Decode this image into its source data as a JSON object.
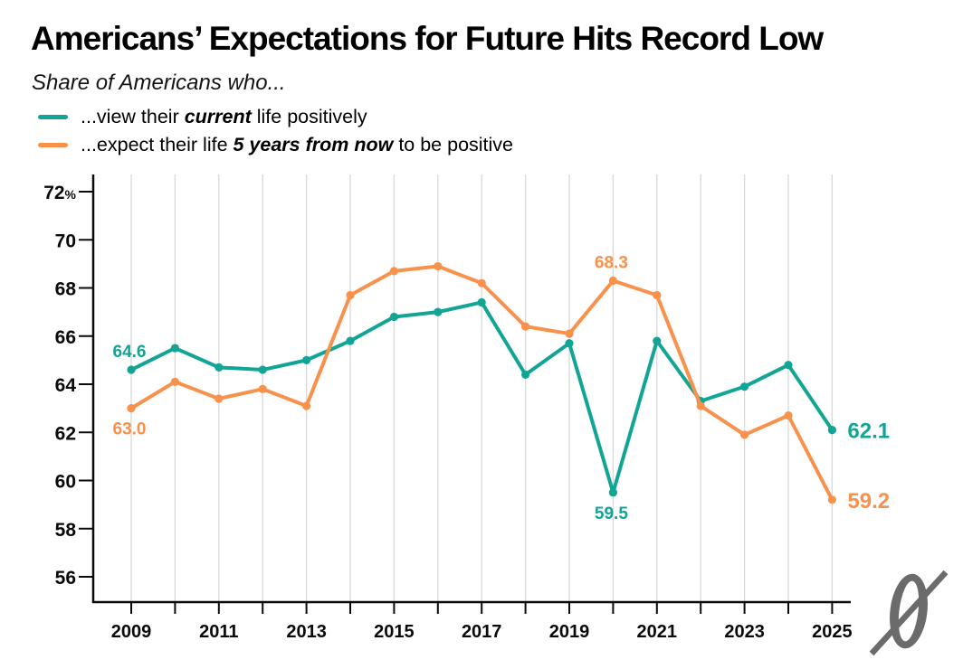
{
  "header": {
    "title": "Americans’ Expectations for Future Hits Record Low",
    "subtitle": "Share of Americans who..."
  },
  "legend": {
    "items": [
      {
        "id": "current",
        "pre": "...view their ",
        "em": "current",
        "post": " life positively",
        "color": "#12a495"
      },
      {
        "id": "future",
        "pre": "...expect their life ",
        "em": "5 years from now",
        "post": " to be positive",
        "color": "#f8914c"
      }
    ]
  },
  "chart_data": {
    "type": "line",
    "x": [
      2009,
      2010,
      2011,
      2012,
      2013,
      2014,
      2015,
      2016,
      2017,
      2018,
      2019,
      2020,
      2021,
      2022,
      2023,
      2024,
      2025
    ],
    "series": [
      {
        "id": "current",
        "name": "...view their current life positively",
        "color": "#12a495",
        "values": [
          64.6,
          65.5,
          64.7,
          64.6,
          65.0,
          65.8,
          66.8,
          67.0,
          67.4,
          64.4,
          65.7,
          59.5,
          65.8,
          63.3,
          63.9,
          64.8,
          62.1
        ]
      },
      {
        "id": "future",
        "name": "...expect their life 5 years from now to be positive",
        "color": "#f8914c",
        "values": [
          63.0,
          64.1,
          63.4,
          63.8,
          63.1,
          67.7,
          68.7,
          68.9,
          68.2,
          66.4,
          66.1,
          68.3,
          67.7,
          63.1,
          61.9,
          62.7,
          59.2
        ]
      }
    ],
    "title": "Americans’ Expectations for Future Hits Record Low",
    "xlabel": "",
    "ylabel": "%",
    "y_unit": "%",
    "ylim": [
      55,
      72.5
    ],
    "yticks": [
      72,
      70,
      68,
      66,
      64,
      62,
      60,
      58,
      56
    ],
    "xtick_labels": [
      2009,
      2011,
      2013,
      2015,
      2017,
      2019,
      2021,
      2023,
      2025
    ],
    "grid": "vertical-only",
    "legend_position": "top-left",
    "annotations": [
      {
        "series": 0,
        "x": 2009,
        "text": "64.6",
        "placement": "above"
      },
      {
        "series": 1,
        "x": 2009,
        "text": "63.0",
        "placement": "below"
      },
      {
        "series": 1,
        "x": 2020,
        "text": "68.3",
        "placement": "above"
      },
      {
        "series": 0,
        "x": 2020,
        "text": "59.5",
        "placement": "below"
      },
      {
        "series": 0,
        "x": 2025,
        "text": "62.1",
        "placement": "right"
      },
      {
        "series": 1,
        "x": 2025,
        "text": "59.2",
        "placement": "right"
      }
    ]
  },
  "colors": {
    "axis": "#0a0a0a",
    "grid": "#d8d8d8",
    "logo": "#6b6b6b"
  },
  "icons": {
    "logo": "slashed-zero-logo",
    "legend_swatches": [
      "teal-line-icon",
      "orange-line-icon"
    ]
  }
}
